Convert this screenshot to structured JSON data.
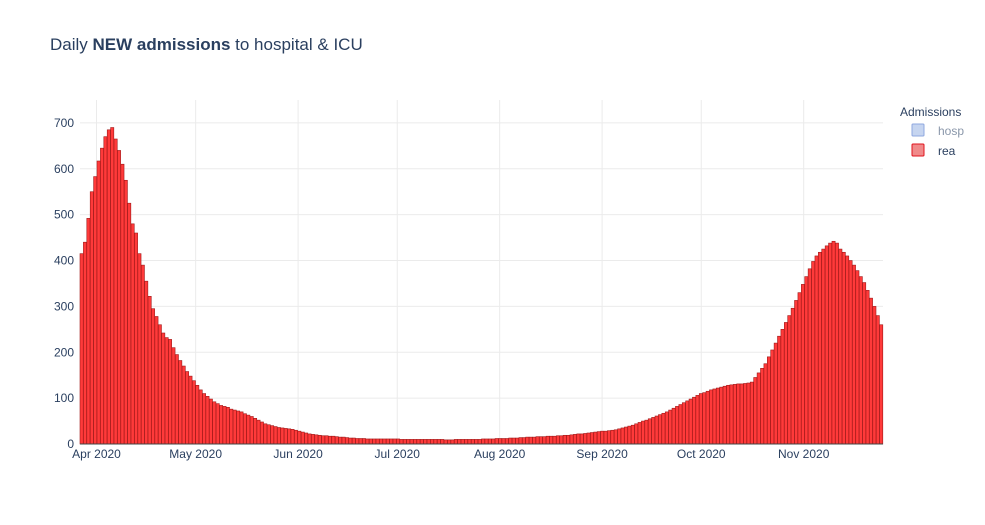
{
  "title": {
    "prefix": "Daily ",
    "bold": "NEW admissions",
    "suffix": " to hospital & ICU"
  },
  "legend": {
    "title": "Admissions",
    "items": [
      {
        "label": "hosp",
        "fill": "#c6d5f0",
        "stroke": "#8fa8df",
        "active": false
      },
      {
        "label": "rea",
        "fill": "#f08a8a",
        "stroke": "#e0141e",
        "active": true
      }
    ]
  },
  "colors": {
    "bar_fill": "#ff3a3a",
    "bar_stroke": "#a01818",
    "grid": "#ebebeb",
    "text": "#2a3f5f"
  },
  "chart_data": {
    "type": "bar",
    "title": "Daily NEW admissions to hospital & ICU",
    "xlabel": "",
    "ylabel": "",
    "x_start": "2020-03-27",
    "x_end": "2020-11-25",
    "xlim": [
      "2020-03-27",
      "2020-11-25"
    ],
    "ylim": [
      0,
      750
    ],
    "yticks": [
      0,
      100,
      200,
      300,
      400,
      500,
      600,
      700
    ],
    "xticks": [
      {
        "date": "2020-04-01",
        "label": "Apr 2020"
      },
      {
        "date": "2020-05-01",
        "label": "May 2020"
      },
      {
        "date": "2020-06-01",
        "label": "Jun 2020"
      },
      {
        "date": "2020-07-01",
        "label": "Jul 2020"
      },
      {
        "date": "2020-08-01",
        "label": "Aug 2020"
      },
      {
        "date": "2020-09-01",
        "label": "Sep 2020"
      },
      {
        "date": "2020-10-01",
        "label": "Oct 2020"
      },
      {
        "date": "2020-11-01",
        "label": "Nov 2020"
      }
    ],
    "grid": true,
    "legend_position": "top-right",
    "series": [
      {
        "name": "hosp",
        "visible": false,
        "values": []
      },
      {
        "name": "rea",
        "visible": true,
        "values": [
          415,
          440,
          492,
          550,
          583,
          617,
          645,
          670,
          685,
          690,
          665,
          640,
          610,
          575,
          525,
          480,
          460,
          415,
          390,
          355,
          322,
          295,
          278,
          260,
          242,
          232,
          228,
          210,
          195,
          182,
          170,
          158,
          148,
          138,
          128,
          118,
          110,
          104,
          98,
          92,
          88,
          84,
          82,
          80,
          76,
          74,
          72,
          70,
          66,
          63,
          60,
          56,
          52,
          48,
          44,
          42,
          40,
          38,
          36,
          35,
          34,
          33,
          32,
          30,
          28,
          26,
          24,
          22,
          21,
          20,
          19,
          18,
          18,
          17,
          17,
          16,
          15,
          15,
          14,
          13,
          13,
          12,
          12,
          12,
          11,
          11,
          11,
          11,
          11,
          11,
          11,
          11,
          11,
          11,
          10,
          10,
          10,
          10,
          10,
          10,
          10,
          10,
          10,
          10,
          10,
          10,
          10,
          9,
          9,
          9,
          10,
          10,
          10,
          10,
          10,
          10,
          10,
          10,
          11,
          11,
          11,
          11,
          12,
          12,
          12,
          12,
          13,
          13,
          13,
          14,
          14,
          15,
          15,
          15,
          16,
          16,
          16,
          17,
          17,
          17,
          18,
          18,
          19,
          19,
          20,
          21,
          22,
          22,
          23,
          24,
          25,
          26,
          27,
          28,
          28,
          29,
          30,
          31,
          33,
          35,
          37,
          39,
          41,
          44,
          47,
          50,
          52,
          55,
          58,
          61,
          64,
          67,
          70,
          74,
          78,
          82,
          86,
          90,
          94,
          98,
          102,
          106,
          110,
          112,
          115,
          118,
          120,
          122,
          124,
          126,
          128,
          129,
          130,
          131,
          131,
          132,
          133,
          135,
          145,
          155,
          165,
          175,
          190,
          205,
          220,
          235,
          250,
          265,
          280,
          296,
          313,
          330,
          348,
          365,
          382,
          398,
          410,
          418,
          425,
          432,
          438,
          442,
          438,
          425,
          418,
          410,
          400,
          390,
          378,
          365,
          352,
          335,
          318,
          300,
          280,
          260
        ]
      }
    ]
  }
}
